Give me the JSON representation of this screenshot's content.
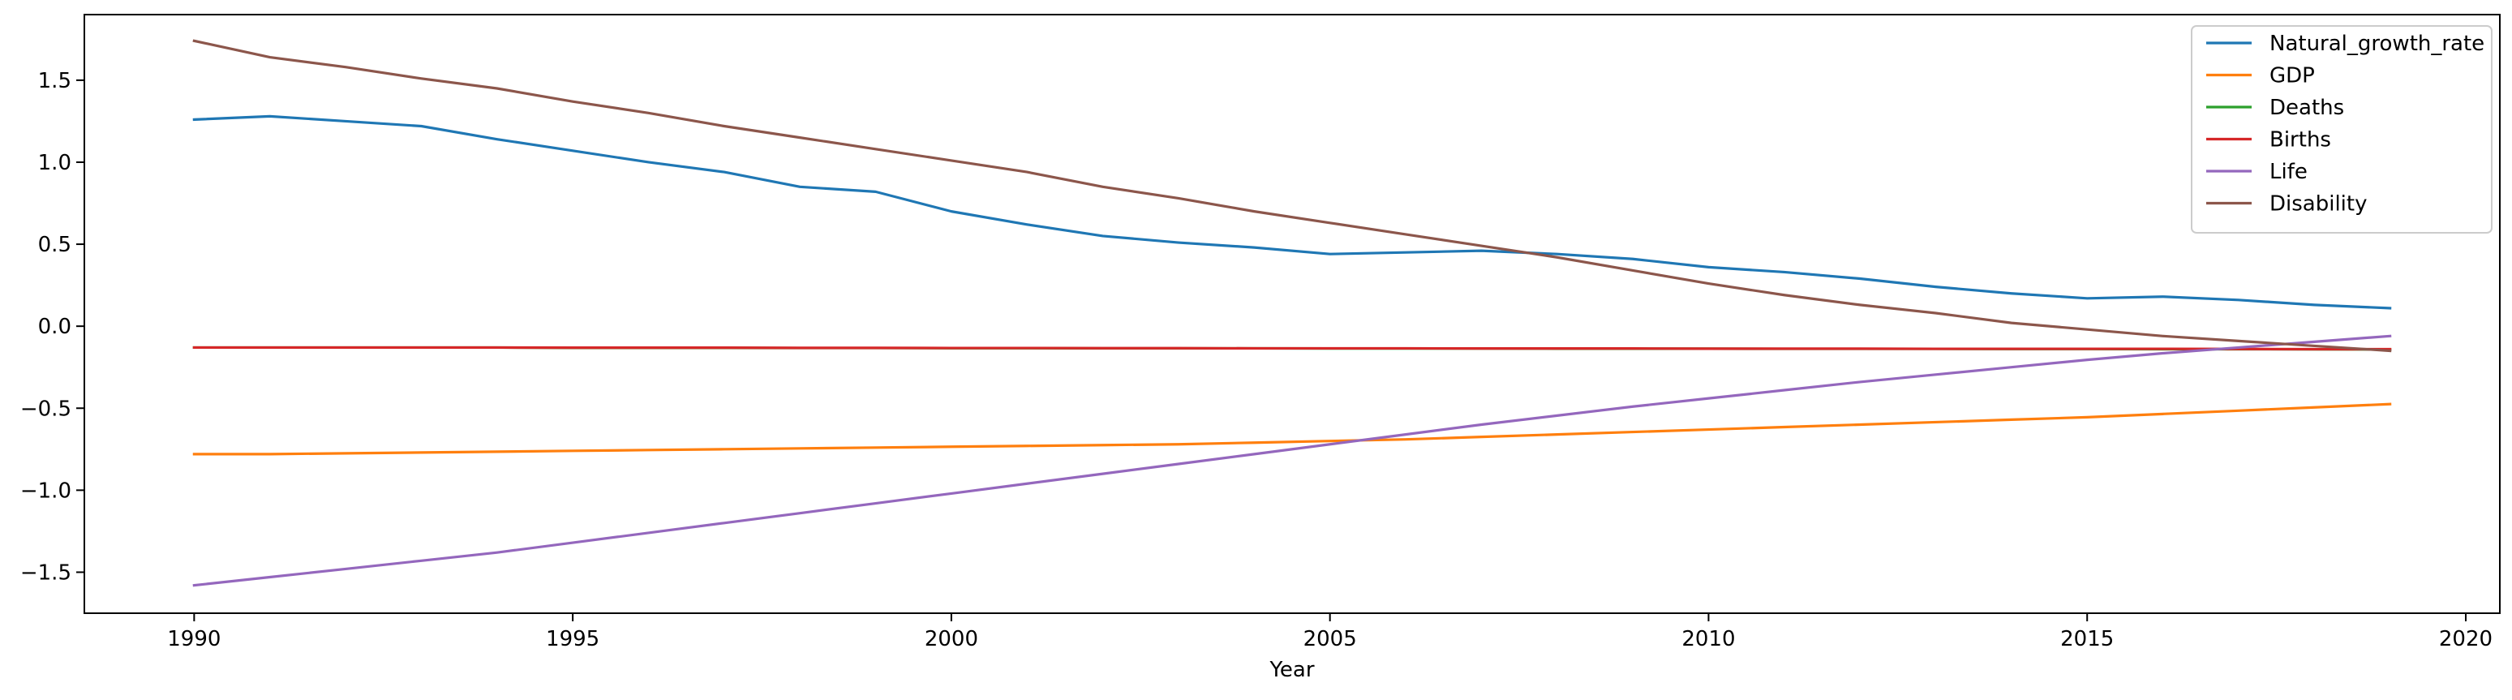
{
  "chart_data": {
    "type": "line",
    "title": "",
    "xlabel": "Year",
    "ylabel": "",
    "xlim": [
      1988.55,
      2020.45
    ],
    "ylim": [
      -1.75,
      1.9
    ],
    "grid": false,
    "legend_position": "top-right",
    "x_ticks": [
      1990,
      1995,
      2000,
      2005,
      2010,
      2015,
      2020
    ],
    "x_tick_labels": [
      "1990",
      "1995",
      "2000",
      "2005",
      "2010",
      "2015",
      "2020"
    ],
    "y_ticks": [
      -1.5,
      -1.0,
      -0.5,
      0.0,
      0.5,
      1.0,
      1.5
    ],
    "y_tick_labels": [
      "−1.5",
      "−1.0",
      "−0.5",
      "0.0",
      "0.5",
      "1.0",
      "1.5"
    ],
    "x": [
      1990,
      1991,
      1992,
      1993,
      1994,
      1995,
      1996,
      1997,
      1998,
      1999,
      2000,
      2001,
      2002,
      2003,
      2004,
      2005,
      2006,
      2007,
      2008,
      2009,
      2010,
      2011,
      2012,
      2013,
      2014,
      2015,
      2016,
      2017,
      2018,
      2019
    ],
    "series": [
      {
        "name": "Natural_growth_rate",
        "color": "#1f77b4",
        "values": [
          1.26,
          1.28,
          1.25,
          1.22,
          1.14,
          1.07,
          1.0,
          0.94,
          0.85,
          0.82,
          0.7,
          0.62,
          0.55,
          0.51,
          0.48,
          0.44,
          0.45,
          0.46,
          0.44,
          0.41,
          0.36,
          0.33,
          0.29,
          0.24,
          0.2,
          0.17,
          0.18,
          0.16,
          0.13,
          0.11
        ]
      },
      {
        "name": "GDP",
        "color": "#ff7f0e",
        "values": [
          -0.78,
          -0.78,
          -0.775,
          -0.77,
          -0.765,
          -0.76,
          -0.755,
          -0.75,
          -0.745,
          -0.74,
          -0.735,
          -0.73,
          -0.725,
          -0.72,
          -0.71,
          -0.7,
          -0.69,
          -0.675,
          -0.66,
          -0.645,
          -0.63,
          -0.615,
          -0.6,
          -0.585,
          -0.57,
          -0.555,
          -0.535,
          -0.515,
          -0.495,
          -0.475
        ]
      },
      {
        "name": "Deaths",
        "color": "#2ca02c",
        "values": [
          -0.13,
          -0.13,
          -0.13,
          -0.13,
          -0.13,
          -0.132,
          -0.132,
          -0.132,
          -0.133,
          -0.133,
          -0.134,
          -0.134,
          -0.135,
          -0.135,
          -0.135,
          -0.136,
          -0.136,
          -0.136,
          -0.137,
          -0.137,
          -0.137,
          -0.138,
          -0.138,
          -0.138,
          -0.139,
          -0.139,
          -0.14,
          -0.14,
          -0.141,
          -0.142
        ]
      },
      {
        "name": "Births",
        "color": "#d62728",
        "values": [
          -0.13,
          -0.13,
          -0.13,
          -0.13,
          -0.13,
          -0.131,
          -0.131,
          -0.131,
          -0.132,
          -0.132,
          -0.133,
          -0.133,
          -0.134,
          -0.134,
          -0.135,
          -0.135,
          -0.135,
          -0.136,
          -0.136,
          -0.136,
          -0.137,
          -0.137,
          -0.137,
          -0.138,
          -0.138,
          -0.138,
          -0.138,
          -0.139,
          -0.14,
          -0.14
        ]
      },
      {
        "name": "Life",
        "color": "#9467bd",
        "values": [
          -1.58,
          -1.53,
          -1.48,
          -1.43,
          -1.38,
          -1.32,
          -1.26,
          -1.2,
          -1.14,
          -1.08,
          -1.02,
          -0.96,
          -0.9,
          -0.84,
          -0.78,
          -0.72,
          -0.66,
          -0.6,
          -0.545,
          -0.49,
          -0.44,
          -0.39,
          -0.34,
          -0.295,
          -0.25,
          -0.205,
          -0.165,
          -0.13,
          -0.095,
          -0.06
        ]
      },
      {
        "name": "Disability",
        "color": "#8c564b",
        "values": [
          1.74,
          1.64,
          1.58,
          1.51,
          1.45,
          1.37,
          1.3,
          1.22,
          1.15,
          1.08,
          1.01,
          0.94,
          0.85,
          0.78,
          0.7,
          0.63,
          0.56,
          0.49,
          0.42,
          0.34,
          0.26,
          0.19,
          0.13,
          0.08,
          0.02,
          -0.02,
          -0.06,
          -0.09,
          -0.12,
          -0.15
        ]
      }
    ]
  }
}
